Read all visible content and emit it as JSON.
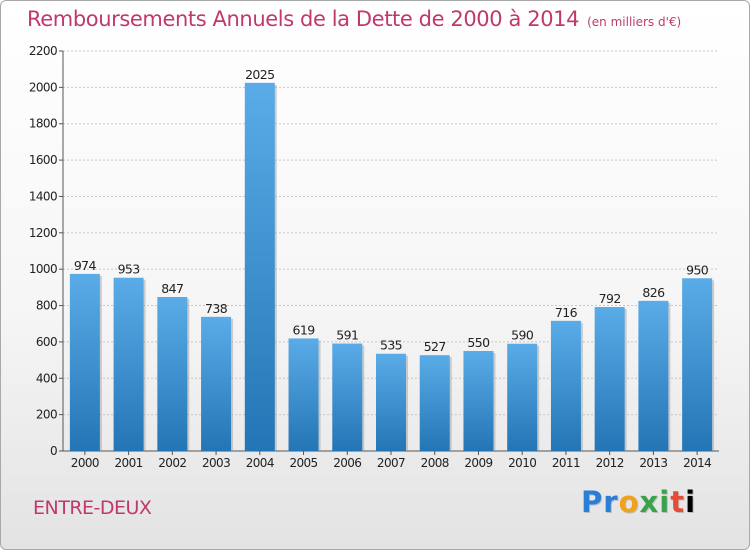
{
  "title": "Remboursements Annuels de la Dette de 2000 à 2014",
  "unit": "(en milliers d'€)",
  "town": "ENTRE-DEUX",
  "logo": [
    "P",
    "r",
    "o",
    "x",
    "i",
    "t",
    "i"
  ],
  "colors": {
    "title": "#c0396e",
    "bar_light": "#5aace8",
    "bar_dark": "#2475b5",
    "grid": "#c8c8c8"
  },
  "chart_data": {
    "type": "bar",
    "title": "Remboursements Annuels de la Dette de 2000 à 2014",
    "xlabel": "",
    "ylabel": "",
    "ylim": [
      0,
      2200
    ],
    "yticks": [
      0,
      200,
      400,
      600,
      800,
      1000,
      1200,
      1400,
      1600,
      1800,
      2000,
      2200
    ],
    "grid": true,
    "categories": [
      "2000",
      "2001",
      "2002",
      "2003",
      "2004",
      "2005",
      "2006",
      "2007",
      "2008",
      "2009",
      "2010",
      "2011",
      "2012",
      "2013",
      "2014"
    ],
    "values": [
      974,
      953,
      847,
      738,
      2025,
      619,
      591,
      535,
      527,
      550,
      590,
      716,
      792,
      826,
      950
    ]
  }
}
